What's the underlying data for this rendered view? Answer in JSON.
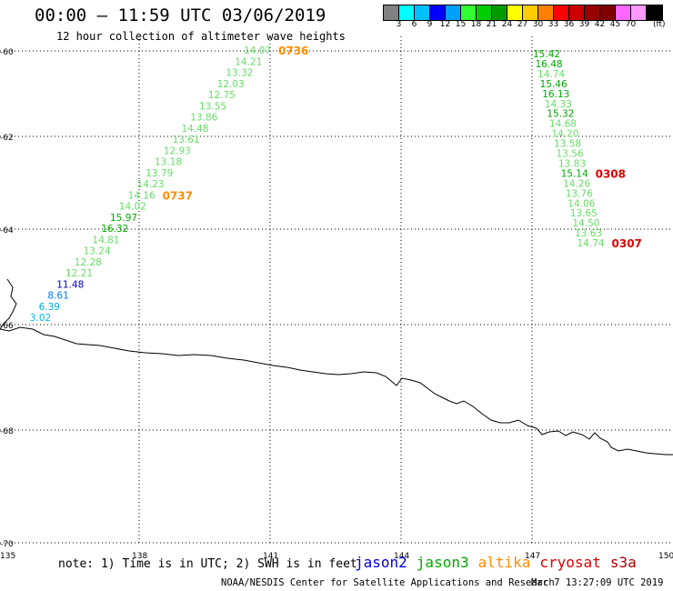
{
  "title": "00:00 – 11:59 UTC 03/06/2019",
  "subtitle": "12 hour collection of altimeter wave heights",
  "legend": {
    "colors": [
      "#808080",
      "#00ffff",
      "#00bfff",
      "#0000ff",
      "#00a0ff",
      "#33ff33",
      "#00cc00",
      "#009900",
      "#ffff00",
      "#ffcc00",
      "#ff8000",
      "#ff0000",
      "#cc0000",
      "#990000",
      "#800000",
      "#ff66ff",
      "#ff99ff",
      "#000000"
    ],
    "labels": [
      "3",
      "6",
      "9",
      "12",
      "15",
      "18",
      "21",
      "24",
      "27",
      "30",
      "33",
      "36",
      "39",
      "42",
      "45",
      "70"
    ],
    "unit": "(ft)"
  },
  "axes": {
    "lat_ticks": [
      "-60",
      "-62",
      "-64",
      "-66",
      "-68",
      "-70"
    ],
    "lon_ticks": [
      "135",
      "138",
      "141",
      "144",
      "147",
      "150"
    ]
  },
  "tracks": [
    {
      "time_labels": [
        {
          "text": "0736",
          "color": "#ff8c00"
        },
        {
          "text": "0737",
          "color": "#ff8c00"
        }
      ],
      "heights": [
        {
          "v": "14.07",
          "c": "#66dd66"
        },
        {
          "v": "14.21",
          "c": "#66dd66"
        },
        {
          "v": "13.32",
          "c": "#66dd66"
        },
        {
          "v": "12.03",
          "c": "#66dd66"
        },
        {
          "v": "12.75",
          "c": "#66dd66"
        },
        {
          "v": "13.55",
          "c": "#66dd66"
        },
        {
          "v": "13.86",
          "c": "#66dd66"
        },
        {
          "v": "14.48",
          "c": "#66dd66"
        },
        {
          "v": "13.61",
          "c": "#66dd66"
        },
        {
          "v": "12.93",
          "c": "#66dd66"
        },
        {
          "v": "13.18",
          "c": "#66dd66"
        },
        {
          "v": "13.79",
          "c": "#66dd66"
        },
        {
          "v": "14.23",
          "c": "#66dd66"
        },
        {
          "v": "14.16",
          "c": "#66dd66"
        },
        {
          "v": "14.02",
          "c": "#66dd66"
        },
        {
          "v": "15.97",
          "c": "#00aa00"
        },
        {
          "v": "16.32",
          "c": "#00aa00"
        },
        {
          "v": "14.81",
          "c": "#66dd66"
        },
        {
          "v": "13.24",
          "c": "#66dd66"
        },
        {
          "v": "12.28",
          "c": "#66dd66"
        },
        {
          "v": "12.21",
          "c": "#66dd66"
        },
        {
          "v": "11.48",
          "c": "#0000cc"
        },
        {
          "v": "8.61",
          "c": "#0077ff"
        },
        {
          "v": "6.39",
          "c": "#00aadd"
        },
        {
          "v": "3.02",
          "c": "#00bbee"
        }
      ]
    },
    {
      "time_labels": [
        {
          "text": "0308",
          "color": "#dd0000"
        },
        {
          "text": "0307",
          "color": "#dd0000"
        }
      ],
      "heights": [
        {
          "v": "15.42",
          "c": "#00aa00"
        },
        {
          "v": "16.48",
          "c": "#00aa00"
        },
        {
          "v": "14.74",
          "c": "#66dd66"
        },
        {
          "v": "15.46",
          "c": "#00aa00"
        },
        {
          "v": "16.13",
          "c": "#00aa00"
        },
        {
          "v": "14.33",
          "c": "#66dd66"
        },
        {
          "v": "15.32",
          "c": "#00aa00"
        },
        {
          "v": "14.68",
          "c": "#66dd66"
        },
        {
          "v": "14.20",
          "c": "#66dd66"
        },
        {
          "v": "13.58",
          "c": "#66dd66"
        },
        {
          "v": "13.56",
          "c": "#66dd66"
        },
        {
          "v": "13.83",
          "c": "#66dd66"
        },
        {
          "v": "15.14",
          "c": "#00aa00"
        },
        {
          "v": "14.26",
          "c": "#66dd66"
        },
        {
          "v": "13.76",
          "c": "#66dd66"
        },
        {
          "v": "14.06",
          "c": "#66dd66"
        },
        {
          "v": "13.65",
          "c": "#66dd66"
        },
        {
          "v": "14.50",
          "c": "#66dd66"
        },
        {
          "v": "13.63",
          "c": "#66dd66"
        },
        {
          "v": "14.74",
          "c": "#66dd66"
        }
      ]
    }
  ],
  "footnote": "note: 1) Time is in UTC; 2) SWH is in feet",
  "satellites": [
    {
      "name": "jason2",
      "color": "#0000cc"
    },
    {
      "name": "jason3",
      "color": "#00aa00"
    },
    {
      "name": "altika",
      "color": "#ff8c00"
    },
    {
      "name": "cryosat",
      "color": "#dd0000"
    },
    {
      "name": "s3a",
      "color": "#aa0000"
    }
  ],
  "credit": "NOAA/NESDIS Center for Satellite Applications and Research",
  "timestamp": "Mar  7 13:27:09 UTC 2019"
}
